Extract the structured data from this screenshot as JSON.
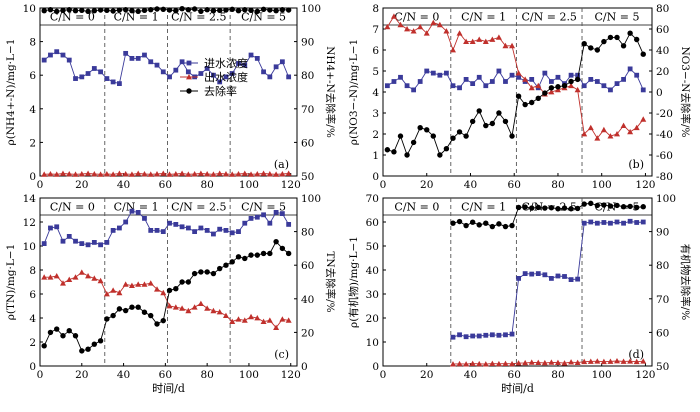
{
  "colors": {
    "influent": "#3a3a9a",
    "effluent": "#c0302c",
    "removal": "#000000",
    "axis": "#000000",
    "divider": "#555555"
  },
  "legend": {
    "items": [
      {
        "label": "进水浓度",
        "series": "influent",
        "marker": "square"
      },
      {
        "label": "出水浓度",
        "series": "effluent",
        "marker": "triangle"
      },
      {
        "label": "去除率",
        "series": "removal",
        "marker": "circle"
      }
    ]
  },
  "stages": {
    "labels": [
      "C/N = 0",
      "C/N = 1",
      "C/N = 2.5",
      "C/N = 5"
    ],
    "boundaries": [
      31,
      61,
      91
    ]
  },
  "chart_data": [
    {
      "type": "line",
      "panel_label": "(a)",
      "xlabel": "",
      "ylabel_left": "ρ(NH4+-N)/mg·L−1",
      "ylabel_right": "NH4+-N去除率/%",
      "xlim": [
        0,
        123
      ],
      "ylim_left": [
        0,
        10
      ],
      "ylim_right": [
        50,
        100
      ],
      "xticks": [
        0,
        20,
        40,
        60,
        80,
        100,
        120
      ],
      "yticks_left": [
        0,
        2,
        4,
        6,
        8,
        10
      ],
      "yticks_right": [
        50,
        60,
        70,
        80,
        90,
        100
      ],
      "series": [
        {
          "name": "进水浓度",
          "axis": "left",
          "x": [
            2,
            5,
            8,
            11,
            14,
            17,
            20,
            23,
            26,
            29,
            32,
            35,
            38,
            41,
            44,
            47,
            50,
            53,
            56,
            59,
            62,
            65,
            68,
            71,
            74,
            77,
            80,
            83,
            86,
            89,
            92,
            95,
            98,
            101,
            104,
            107,
            110,
            113,
            116,
            119
          ],
          "y": [
            6.9,
            7.2,
            7.4,
            7.2,
            6.9,
            5.8,
            5.9,
            6.1,
            6.4,
            6.2,
            5.8,
            5.6,
            5.5,
            7.3,
            7.0,
            7.0,
            7.2,
            6.8,
            6.6,
            6.2,
            5.9,
            6.3,
            6.8,
            6.2,
            5.9,
            6.1,
            6.4,
            6.0,
            5.6,
            5.9,
            6.1,
            6.7,
            6.6,
            7.2,
            7.0,
            6.2,
            5.9,
            6.5,
            6.8,
            5.9
          ]
        },
        {
          "name": "出水浓度",
          "axis": "left",
          "x": [
            2,
            5,
            8,
            11,
            14,
            17,
            20,
            23,
            26,
            29,
            32,
            35,
            38,
            41,
            44,
            47,
            50,
            53,
            56,
            59,
            62,
            65,
            68,
            71,
            74,
            77,
            80,
            83,
            86,
            89,
            92,
            95,
            98,
            101,
            104,
            107,
            110,
            113,
            116,
            119
          ],
          "y": [
            0.1,
            0.12,
            0.1,
            0.15,
            0.12,
            0.1,
            0.12,
            0.15,
            0.12,
            0.1,
            0.12,
            0.1,
            0.15,
            0.12,
            0.1,
            0.15,
            0.12,
            0.1,
            0.12,
            0.15,
            0.1,
            0.12,
            0.15,
            0.1,
            0.12,
            0.15,
            0.12,
            0.1,
            0.15,
            0.12,
            0.1,
            0.12,
            0.15,
            0.1,
            0.12,
            0.15,
            0.12,
            0.1,
            0.12,
            0.15
          ]
        },
        {
          "name": "去除率",
          "axis": "right",
          "x": [
            2,
            5,
            8,
            11,
            14,
            17,
            20,
            23,
            26,
            29,
            32,
            35,
            38,
            41,
            44,
            47,
            50,
            53,
            56,
            59,
            62,
            65,
            68,
            71,
            74,
            77,
            80,
            83,
            86,
            89,
            92,
            95,
            98,
            101,
            104,
            107,
            110,
            113,
            116,
            119
          ],
          "y": [
            99.2,
            99.5,
            99.0,
            99.3,
            99.5,
            99.2,
            99.3,
            99.0,
            99.2,
            99.4,
            99.3,
            99.1,
            99.4,
            99.5,
            99.2,
            99.0,
            99.3,
            99.5,
            99.7,
            99.6,
            99.4,
            99.2,
            99.8,
            99.5,
            99.7,
            99.0,
            99.5,
            99.2,
            99.3,
            99.4,
            99.6,
            99.2,
            99.5,
            99.3,
            99.0,
            99.6,
            99.4,
            99.2,
            99.5,
            99.4
          ]
        }
      ]
    },
    {
      "type": "line",
      "panel_label": "(b)",
      "xlabel": "",
      "ylabel_left": "ρ(NO3−-N)/mg·L−1",
      "ylabel_right": "NO3−-N去除率/%",
      "xlim": [
        0,
        123
      ],
      "ylim_left": [
        0,
        8
      ],
      "ylim_right": [
        -80,
        80
      ],
      "xticks": [
        0,
        20,
        40,
        60,
        80,
        100,
        120
      ],
      "yticks_left": [
        0,
        1,
        2,
        3,
        4,
        5,
        6,
        7,
        8
      ],
      "yticks_right": [
        -80,
        -60,
        -40,
        -20,
        0,
        20,
        40,
        60,
        80
      ],
      "series": [
        {
          "name": "进水浓度",
          "axis": "left",
          "x": [
            2,
            5,
            8,
            11,
            14,
            17,
            20,
            23,
            26,
            29,
            32,
            35,
            38,
            41,
            44,
            47,
            50,
            53,
            56,
            59,
            62,
            65,
            68,
            71,
            74,
            77,
            80,
            83,
            86,
            89,
            92,
            95,
            98,
            101,
            104,
            107,
            110,
            113,
            116,
            119
          ],
          "y": [
            4.3,
            4.5,
            4.7,
            4.3,
            4.1,
            4.5,
            5.0,
            4.9,
            4.8,
            4.9,
            4.3,
            4.2,
            4.6,
            4.4,
            4.7,
            4.3,
            4.5,
            5.0,
            4.5,
            4.8,
            4.7,
            4.5,
            4.6,
            4.2,
            4.9,
            4.5,
            4.7,
            4.4,
            4.8,
            4.8,
            4.3,
            4.6,
            4.5,
            4.3,
            4.1,
            4.4,
            4.6,
            5.1,
            4.8,
            4.1
          ]
        },
        {
          "name": "出水浓度",
          "axis": "left",
          "x": [
            2,
            5,
            8,
            11,
            14,
            17,
            20,
            23,
            26,
            29,
            32,
            35,
            38,
            41,
            44,
            47,
            50,
            53,
            56,
            59,
            62,
            65,
            68,
            71,
            74,
            77,
            80,
            83,
            86,
            89,
            92,
            95,
            98,
            101,
            104,
            107,
            110,
            113,
            116,
            119
          ],
          "y": [
            7.1,
            7.6,
            7.2,
            7.0,
            6.9,
            7.1,
            6.8,
            7.3,
            7.2,
            6.9,
            6.0,
            6.8,
            6.4,
            6.4,
            6.5,
            6.4,
            6.5,
            6.6,
            6.2,
            6.2,
            4.9,
            4.6,
            4.2,
            4.3,
            3.9,
            4.0,
            4.1,
            4.2,
            4.3,
            4.1,
            2.0,
            2.3,
            1.8,
            2.2,
            1.9,
            2.0,
            2.4,
            2.1,
            2.3,
            2.7
          ]
        },
        {
          "name": "去除率",
          "axis": "right",
          "x": [
            2,
            5,
            8,
            11,
            14,
            17,
            20,
            23,
            26,
            29,
            32,
            35,
            38,
            41,
            44,
            47,
            50,
            53,
            56,
            59,
            62,
            65,
            68,
            71,
            74,
            77,
            80,
            83,
            86,
            89,
            92,
            95,
            98,
            101,
            104,
            107,
            110,
            113,
            116,
            119
          ],
          "y": [
            -55,
            -57,
            -42,
            -60,
            -48,
            -34,
            -36,
            -42,
            -60,
            -54,
            -44,
            -38,
            -42,
            -28,
            -18,
            -32,
            -30,
            -20,
            -28,
            -42,
            -4,
            -12,
            -10,
            -6,
            -1,
            4,
            5,
            6,
            10,
            12,
            46,
            42,
            40,
            48,
            52,
            52,
            44,
            56,
            50,
            36
          ]
        }
      ]
    },
    {
      "type": "line",
      "panel_label": "(c)",
      "xlabel": "时间/d",
      "ylabel_left": "ρ(TN)/mg·L−1",
      "ylabel_right": "TN去除率/%",
      "xlim": [
        0,
        123
      ],
      "ylim_left": [
        0,
        14
      ],
      "ylim_right": [
        0,
        100
      ],
      "xticks": [
        0,
        20,
        40,
        60,
        80,
        100,
        120
      ],
      "yticks_left": [
        0,
        2,
        4,
        6,
        8,
        10,
        12,
        14
      ],
      "yticks_right": [
        0,
        20,
        40,
        60,
        80,
        100
      ],
      "series": [
        {
          "name": "进水浓度",
          "axis": "left",
          "x": [
            2,
            5,
            8,
            11,
            14,
            17,
            20,
            23,
            26,
            29,
            32,
            35,
            38,
            41,
            44,
            47,
            50,
            53,
            56,
            59,
            62,
            65,
            68,
            71,
            74,
            77,
            80,
            83,
            86,
            89,
            92,
            95,
            98,
            101,
            104,
            107,
            110,
            113,
            116,
            119
          ],
          "y": [
            10.2,
            11.5,
            11.6,
            10.4,
            10.8,
            10.4,
            10.2,
            10.1,
            10.3,
            10.1,
            10.3,
            11.3,
            11.5,
            12.0,
            12.9,
            12.8,
            12.3,
            11.3,
            11.3,
            11.2,
            11.9,
            11.8,
            11.6,
            11.5,
            11.2,
            11.5,
            11.3,
            11.0,
            11.4,
            11.3,
            11.1,
            11.2,
            11.9,
            12.3,
            12.4,
            12.6,
            11.9,
            12.8,
            12.7,
            11.8
          ]
        },
        {
          "name": "出水浓度",
          "axis": "left",
          "x": [
            2,
            5,
            8,
            11,
            14,
            17,
            20,
            23,
            26,
            29,
            32,
            35,
            38,
            41,
            44,
            47,
            50,
            53,
            56,
            59,
            62,
            65,
            68,
            71,
            74,
            77,
            80,
            83,
            86,
            89,
            92,
            95,
            98,
            101,
            104,
            107,
            110,
            113,
            116,
            119
          ],
          "y": [
            7.4,
            7.4,
            7.5,
            6.9,
            7.2,
            7.4,
            7.8,
            7.5,
            7.3,
            7.1,
            6.0,
            6.3,
            6.1,
            6.8,
            6.7,
            6.8,
            6.8,
            6.9,
            6.4,
            6.1,
            5.0,
            4.9,
            4.8,
            4.6,
            4.9,
            5.2,
            4.8,
            4.6,
            4.5,
            4.2,
            3.7,
            3.9,
            3.8,
            4.1,
            4.0,
            3.7,
            3.8,
            3.2,
            3.9,
            3.8
          ]
        },
        {
          "name": "去除率",
          "axis": "right",
          "x": [
            2,
            5,
            8,
            11,
            14,
            17,
            20,
            23,
            26,
            29,
            32,
            35,
            38,
            41,
            44,
            47,
            50,
            53,
            56,
            59,
            62,
            65,
            68,
            71,
            74,
            77,
            80,
            83,
            86,
            89,
            92,
            95,
            98,
            101,
            104,
            107,
            110,
            113,
            116,
            119
          ],
          "y": [
            12,
            20,
            22,
            18,
            21,
            18,
            9,
            10,
            13,
            15,
            28,
            30,
            34,
            33,
            35,
            35,
            32,
            30,
            25,
            27,
            45,
            46,
            50,
            50,
            55,
            56,
            56,
            55,
            58,
            60,
            62,
            65,
            64,
            66,
            66,
            67,
            67,
            74,
            70,
            67
          ]
        }
      ]
    },
    {
      "type": "line",
      "panel_label": "(d)",
      "xlabel": "时间/d",
      "ylabel_left": "ρ(有机物)/mg·L−1",
      "ylabel_right": "有机物去除率/%",
      "xlim": [
        0,
        123
      ],
      "ylim_left": [
        0,
        70
      ],
      "ylim_right": [
        50,
        100
      ],
      "xticks": [
        0,
        20,
        40,
        60,
        80,
        100,
        120
      ],
      "yticks_left": [
        0,
        10,
        20,
        30,
        40,
        50,
        60,
        70
      ],
      "yticks_right": [
        50,
        60,
        70,
        80,
        90,
        100
      ],
      "series": [
        {
          "name": "进水浓度",
          "axis": "left",
          "x": [
            32,
            35,
            38,
            41,
            44,
            47,
            50,
            53,
            56,
            59,
            62,
            65,
            68,
            71,
            74,
            77,
            80,
            83,
            86,
            89,
            92,
            95,
            98,
            101,
            104,
            107,
            110,
            113,
            116,
            119
          ],
          "y": [
            12.0,
            13.0,
            12.2,
            12.5,
            12.5,
            12.8,
            13.0,
            12.8,
            13.0,
            13.3,
            36.5,
            38.5,
            38.3,
            38.5,
            38.0,
            36.5,
            37.5,
            37.3,
            36.0,
            36.2,
            59.5,
            60.0,
            59.5,
            59.8,
            59.5,
            60.0,
            59.5,
            60.3,
            59.8,
            60.0
          ]
        },
        {
          "name": "出水浓度",
          "axis": "left",
          "x": [
            32,
            35,
            38,
            41,
            44,
            47,
            50,
            53,
            56,
            59,
            62,
            65,
            68,
            71,
            74,
            77,
            80,
            83,
            86,
            89,
            92,
            95,
            98,
            101,
            104,
            107,
            110,
            113,
            116,
            119
          ],
          "y": [
            0.8,
            0.9,
            0.8,
            1.0,
            0.9,
            0.8,
            1.0,
            0.9,
            1.0,
            0.9,
            1.2,
            1.3,
            1.5,
            1.4,
            1.3,
            1.5,
            1.4,
            1.2,
            1.6,
            1.4,
            1.8,
            1.9,
            2.0,
            1.8,
            1.9,
            2.1,
            1.9,
            2.0,
            1.8,
            2.0
          ]
        },
        {
          "name": "去除率",
          "axis": "right",
          "x": [
            32,
            35,
            38,
            41,
            44,
            47,
            50,
            53,
            56,
            59,
            62,
            65,
            68,
            71,
            74,
            77,
            80,
            83,
            86,
            89,
            92,
            95,
            98,
            101,
            104,
            107,
            110,
            113,
            116,
            119
          ],
          "y": [
            92.5,
            93.0,
            91.8,
            92.8,
            92.0,
            92.5,
            91.5,
            92.3,
            91.5,
            91.8,
            97.2,
            97.3,
            97.0,
            97.2,
            97.0,
            97.1,
            96.8,
            97.0,
            96.8,
            96.9,
            98.2,
            98.4,
            97.8,
            97.9,
            97.6,
            97.8,
            97.4,
            97.5,
            97.2,
            97.4
          ]
        }
      ]
    }
  ]
}
